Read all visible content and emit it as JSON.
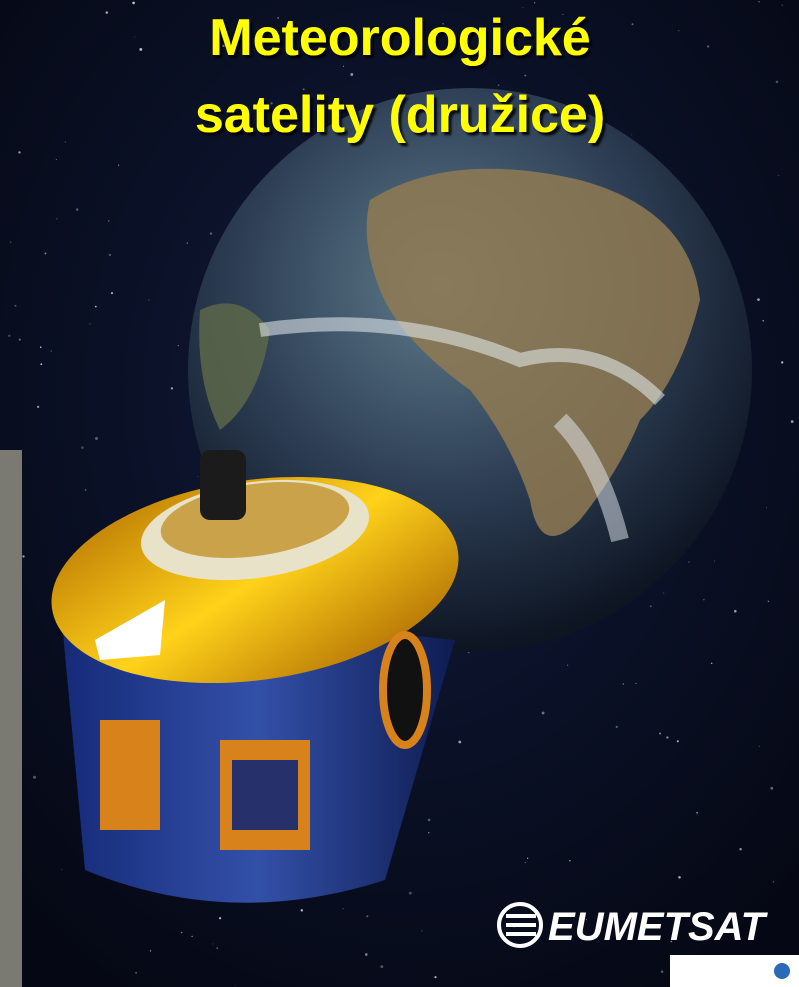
{
  "title": {
    "line1": "Meteorologické",
    "line2": "satelity (družice)"
  },
  "logo": {
    "text": "EUMETSAT"
  }
}
